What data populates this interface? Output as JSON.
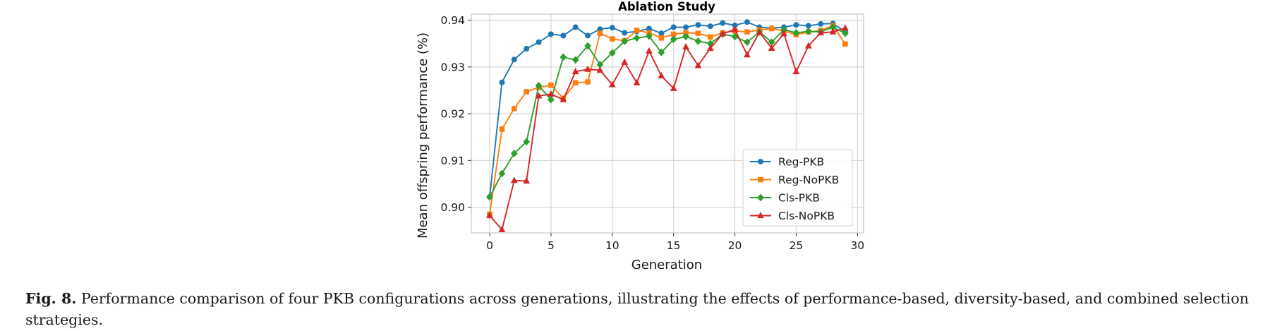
{
  "chart_data": {
    "type": "line",
    "title": "Ablation Study",
    "xlabel": "Generation",
    "ylabel": "Mean offspring performance (%)",
    "xlim": [
      -1.5,
      30.5
    ],
    "ylim": [
      0.8945,
      0.9413
    ],
    "xticks": [
      0,
      5,
      10,
      15,
      20,
      25,
      30
    ],
    "xtick_labels": [
      "0",
      "5",
      "10",
      "15",
      "20",
      "25",
      "30"
    ],
    "yticks": [
      0.9,
      0.91,
      0.92,
      0.93,
      0.94
    ],
    "ytick_labels": [
      "0.90",
      "0.91",
      "0.92",
      "0.93",
      "0.94"
    ],
    "grid": true,
    "legend_position": "lower-right",
    "x": [
      0,
      1,
      2,
      3,
      4,
      5,
      6,
      7,
      8,
      9,
      10,
      11,
      12,
      13,
      14,
      15,
      16,
      17,
      18,
      19,
      20,
      21,
      22,
      23,
      24,
      25,
      26,
      27,
      28,
      29
    ],
    "series": [
      {
        "name": "Reg-PKB",
        "color": "#1f77b4",
        "marker": "circle",
        "values": [
          0.9022,
          0.9267,
          0.9316,
          0.9339,
          0.9353,
          0.937,
          0.9367,
          0.9385,
          0.9367,
          0.9381,
          0.9384,
          0.9373,
          0.9376,
          0.9382,
          0.9372,
          0.9385,
          0.9385,
          0.939,
          0.9387,
          0.9394,
          0.9389,
          0.9396,
          0.9385,
          0.9383,
          0.9385,
          0.939,
          0.9388,
          0.9392,
          0.9393,
          0.9375
        ]
      },
      {
        "name": "Reg-NoPKB",
        "color": "#ff7f0e",
        "marker": "square",
        "values": [
          0.8985,
          0.9167,
          0.9211,
          0.9247,
          0.9256,
          0.9261,
          0.9233,
          0.9266,
          0.9268,
          0.9372,
          0.936,
          0.9356,
          0.9378,
          0.9373,
          0.9362,
          0.937,
          0.9373,
          0.9372,
          0.9364,
          0.9373,
          0.9377,
          0.9375,
          0.9379,
          0.9382,
          0.9377,
          0.9369,
          0.9375,
          0.9378,
          0.9388,
          0.9349
        ]
      },
      {
        "name": "Cls-PKB",
        "color": "#2ca02c",
        "marker": "diamond",
        "values": [
          0.9022,
          0.9072,
          0.9115,
          0.914,
          0.926,
          0.923,
          0.9321,
          0.9315,
          0.9345,
          0.9305,
          0.933,
          0.9355,
          0.9362,
          0.9366,
          0.9331,
          0.9359,
          0.9365,
          0.9355,
          0.935,
          0.937,
          0.9365,
          0.9353,
          0.9375,
          0.9353,
          0.938,
          0.9373,
          0.9376,
          0.9375,
          0.9385,
          0.9372
        ]
      },
      {
        "name": "Cls-NoPKB",
        "color": "#d62728",
        "marker": "triangle",
        "values": [
          0.8982,
          0.8952,
          0.9057,
          0.9056,
          0.9238,
          0.9242,
          0.923,
          0.929,
          0.9295,
          0.9293,
          0.9262,
          0.931,
          0.9266,
          0.9334,
          0.9281,
          0.9254,
          0.9343,
          0.9303,
          0.934,
          0.9371,
          0.938,
          0.9326,
          0.9374,
          0.934,
          0.9371,
          0.929,
          0.9345,
          0.9373,
          0.9375,
          0.9383
        ]
      }
    ]
  },
  "caption": {
    "label": "Fig. 8.",
    "text": " Performance comparison of four PKB configurations across generations, illustrating the effects of performance-based, diversity-based, and combined selection strategies."
  }
}
